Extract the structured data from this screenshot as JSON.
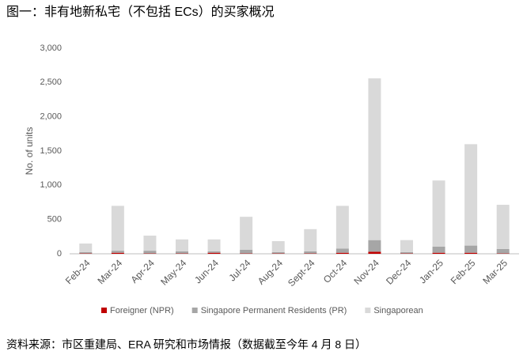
{
  "chart_data": {
    "type": "bar",
    "stacked": true,
    "title": "图一：非有地新私宅（不包括 ECs）的买家概况",
    "source": "资料来源：市区重建局、ERA 研究和市场情报（数据截至今年 4 月 8 日）",
    "y_label": "No. of units",
    "categories": [
      "Feb-24",
      "Mar-24",
      "Apr-24",
      "May-24",
      "Jun-24",
      "Jul-24",
      "Aug-24",
      "Sept-24",
      "Oct-24",
      "Nov-24",
      "Dec-24",
      "Jan-25",
      "Feb-25",
      "Mar-25"
    ],
    "series": [
      {
        "name": "Foreigner (NPR)",
        "color": "#c00000",
        "values": [
          5,
          15,
          5,
          5,
          15,
          5,
          5,
          5,
          15,
          30,
          5,
          15,
          15,
          5
        ]
      },
      {
        "name": "Singapore Permanent Residents (PR)",
        "color": "#a6a6a6",
        "values": [
          20,
          30,
          40,
          30,
          20,
          55,
          20,
          30,
          60,
          170,
          20,
          90,
          105,
          65
        ]
      },
      {
        "name": "Singaporean",
        "color": "#d9d9d9",
        "values": [
          125,
          655,
          220,
          175,
          175,
          480,
          160,
          325,
          625,
          2360,
          175,
          965,
          1480,
          645
        ]
      }
    ],
    "ylim": [
      0,
      3000
    ],
    "yticks": [
      0,
      500,
      {
        "value": 1000,
        "label": "1,000"
      },
      {
        "value": 1500,
        "label": "1,500"
      },
      {
        "value": 2000,
        "label": "2,000"
      },
      {
        "value": 2500,
        "label": "2,500"
      },
      {
        "value": 3000,
        "label": "3,000"
      }
    ],
    "grid": false,
    "legend": "bottom"
  }
}
